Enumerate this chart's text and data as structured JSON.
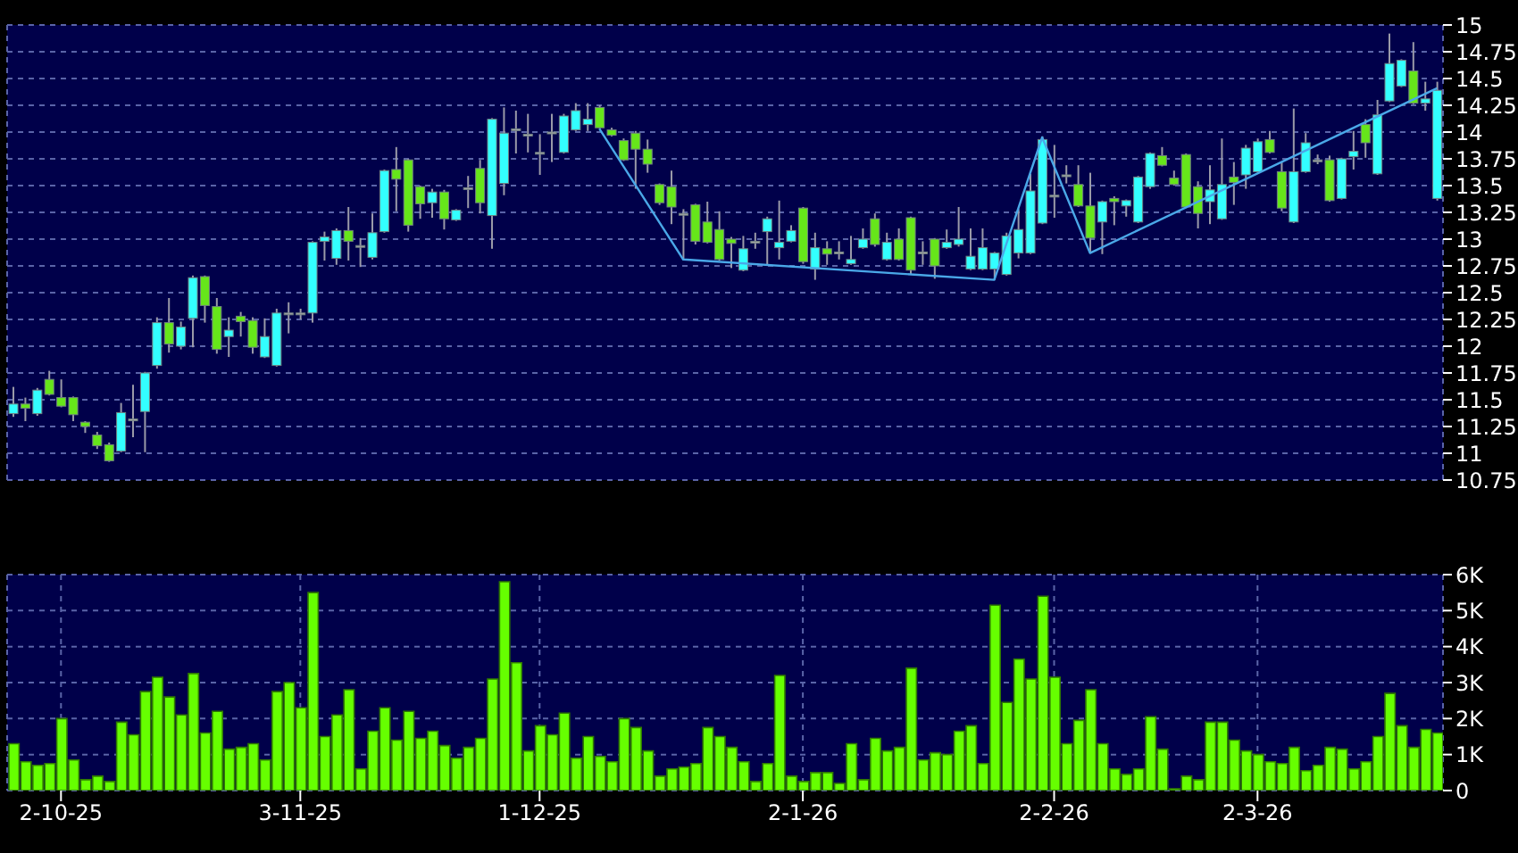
{
  "chart_data": [
    {
      "type": "candlestick",
      "tick_labels": "y",
      "grid": true,
      "ylim": [
        10.75,
        15
      ],
      "yticks": [
        10.75,
        11,
        11.25,
        11.5,
        11.75,
        12,
        12.25,
        12.5,
        12.75,
        13,
        13.25,
        13.5,
        13.75,
        14,
        14.25,
        14.5,
        14.75,
        15
      ],
      "categories": [
        null,
        null,
        null,
        null,
        null,
        null,
        null,
        null,
        null,
        null,
        null,
        null,
        null,
        null,
        null,
        null,
        null,
        null,
        null,
        null,
        null,
        null,
        null,
        null,
        null,
        null,
        null,
        null,
        null,
        null,
        null,
        null,
        null,
        null,
        null,
        null,
        null,
        null,
        null,
        null,
        null,
        null,
        null,
        null,
        null,
        null,
        null,
        null,
        null,
        null,
        null,
        null,
        null,
        null,
        null,
        null,
        null,
        null,
        null,
        null,
        null,
        null,
        null,
        null,
        null,
        null,
        null,
        null,
        null,
        null,
        null,
        null,
        null,
        null,
        null,
        null,
        null,
        null,
        null,
        null,
        null,
        null,
        null,
        null,
        null,
        null,
        null,
        null,
        null,
        null,
        null,
        null,
        null,
        null,
        null,
        null,
        null,
        null,
        null,
        null,
        null,
        null,
        null,
        null,
        null,
        null,
        null,
        null,
        null,
        null,
        null,
        null,
        null,
        null,
        null,
        null,
        null,
        null,
        null,
        null
      ],
      "ohlc": [
        [
          11.37,
          11.62,
          11.34,
          11.46
        ],
        [
          11.46,
          11.52,
          11.3,
          11.42
        ],
        [
          11.37,
          11.61,
          11.35,
          11.59
        ],
        [
          11.69,
          11.77,
          11.54,
          11.55
        ],
        [
          11.52,
          11.69,
          11.43,
          11.44
        ],
        [
          11.52,
          11.53,
          11.3,
          11.36
        ],
        [
          11.29,
          11.3,
          11.19,
          11.25
        ],
        [
          11.17,
          11.2,
          11.04,
          11.07
        ],
        [
          11.08,
          11.1,
          10.92,
          10.93
        ],
        [
          11.02,
          11.47,
          11.01,
          11.38
        ],
        [
          11.32,
          11.64,
          11.15,
          11.32
        ],
        [
          11.39,
          11.76,
          11.01,
          11.75
        ],
        [
          11.82,
          12.27,
          11.79,
          12.22
        ],
        [
          12.22,
          12.45,
          11.94,
          12.02
        ],
        [
          12.0,
          12.23,
          11.97,
          12.18
        ],
        [
          12.26,
          12.66,
          11.99,
          12.64
        ],
        [
          12.65,
          12.66,
          12.22,
          12.38
        ],
        [
          12.37,
          12.45,
          11.93,
          11.97
        ],
        [
          12.09,
          12.27,
          11.9,
          12.15
        ],
        [
          12.28,
          12.32,
          12.09,
          12.23
        ],
        [
          12.24,
          12.27,
          11.93,
          11.99
        ],
        [
          11.9,
          12.26,
          11.89,
          12.09
        ],
        [
          11.82,
          12.35,
          11.81,
          12.31
        ],
        [
          12.31,
          12.41,
          12.12,
          12.31
        ],
        [
          12.31,
          12.35,
          12.25,
          12.31
        ],
        [
          12.31,
          12.98,
          12.22,
          12.97
        ],
        [
          12.98,
          13.07,
          12.8,
          13.02
        ],
        [
          12.82,
          13.1,
          12.76,
          13.08
        ],
        [
          13.08,
          13.3,
          12.8,
          12.98
        ],
        [
          12.94,
          13.01,
          12.74,
          12.94
        ],
        [
          12.83,
          13.24,
          12.81,
          13.06
        ],
        [
          13.07,
          13.65,
          13.06,
          13.64
        ],
        [
          13.65,
          13.86,
          13.26,
          13.56
        ],
        [
          13.74,
          13.75,
          13.07,
          13.13
        ],
        [
          13.49,
          13.5,
          13.19,
          13.33
        ],
        [
          13.34,
          13.47,
          13.2,
          13.44
        ],
        [
          13.44,
          13.46,
          13.09,
          13.19
        ],
        [
          13.18,
          13.28,
          13.17,
          13.27
        ],
        [
          13.48,
          13.59,
          13.29,
          13.48
        ],
        [
          13.66,
          13.74,
          13.24,
          13.34
        ],
        [
          13.22,
          14.13,
          12.91,
          14.12
        ],
        [
          13.52,
          14.23,
          13.41,
          13.99
        ],
        [
          14.03,
          14.2,
          13.8,
          14.03
        ],
        [
          13.98,
          14.17,
          13.81,
          13.98
        ],
        [
          13.81,
          13.98,
          13.6,
          13.81
        ],
        [
          14.0,
          14.17,
          13.72,
          14.0
        ],
        [
          13.81,
          14.17,
          13.8,
          14.15
        ],
        [
          14.02,
          14.27,
          14.01,
          14.2
        ],
        [
          14.07,
          14.27,
          14.01,
          14.12
        ],
        [
          14.23,
          14.25,
          14.03,
          14.04
        ],
        [
          14.02,
          14.04,
          13.96,
          13.97
        ],
        [
          13.92,
          13.94,
          13.73,
          13.74
        ],
        [
          13.99,
          14.01,
          13.47,
          13.84
        ],
        [
          13.84,
          13.93,
          13.62,
          13.7
        ],
        [
          13.51,
          13.52,
          13.32,
          13.34
        ],
        [
          13.49,
          13.64,
          13.14,
          13.3
        ],
        [
          13.24,
          13.28,
          12.81,
          13.24
        ],
        [
          13.32,
          13.33,
          12.95,
          12.98
        ],
        [
          13.16,
          13.35,
          12.96,
          12.97
        ],
        [
          13.09,
          13.26,
          12.8,
          12.81
        ],
        [
          13.0,
          13.02,
          12.73,
          12.96
        ],
        [
          12.71,
          13.03,
          12.7,
          12.91
        ],
        [
          12.98,
          13.06,
          12.91,
          12.98
        ],
        [
          13.07,
          13.21,
          12.76,
          13.19
        ],
        [
          12.92,
          13.36,
          12.81,
          12.97
        ],
        [
          12.98,
          13.13,
          12.97,
          13.08
        ],
        [
          13.29,
          13.3,
          12.77,
          12.79
        ],
        [
          12.72,
          13.06,
          12.62,
          12.92
        ],
        [
          12.91,
          12.98,
          12.76,
          12.86
        ],
        [
          12.88,
          12.98,
          12.81,
          12.88
        ],
        [
          12.77,
          13.03,
          12.76,
          12.81
        ],
        [
          12.92,
          13.1,
          12.91,
          13.0
        ],
        [
          13.19,
          13.24,
          12.93,
          12.95
        ],
        [
          12.81,
          13.06,
          12.8,
          12.97
        ],
        [
          13.0,
          13.1,
          12.8,
          12.81
        ],
        [
          13.2,
          13.21,
          12.67,
          12.71
        ],
        [
          12.88,
          12.98,
          12.76,
          12.88
        ],
        [
          13.0,
          13.01,
          12.63,
          12.75
        ],
        [
          12.92,
          13.09,
          12.91,
          12.97
        ],
        [
          12.95,
          13.3,
          12.93,
          13.0
        ],
        [
          12.72,
          13.1,
          12.71,
          12.84
        ],
        [
          12.72,
          13.1,
          12.71,
          12.92
        ],
        [
          12.72,
          12.88,
          12.62,
          12.87
        ],
        [
          12.67,
          13.06,
          12.66,
          13.03
        ],
        [
          12.87,
          13.28,
          12.82,
          13.09
        ],
        [
          12.87,
          13.61,
          12.86,
          13.45
        ],
        [
          13.15,
          13.96,
          13.14,
          13.93
        ],
        [
          13.41,
          13.88,
          13.2,
          13.41
        ],
        [
          13.6,
          13.69,
          13.52,
          13.6
        ],
        [
          13.51,
          13.69,
          13.3,
          13.31
        ],
        [
          13.31,
          13.62,
          12.87,
          13.01
        ],
        [
          13.16,
          13.36,
          12.86,
          13.35
        ],
        [
          13.38,
          13.4,
          13.13,
          13.35
        ],
        [
          13.31,
          13.37,
          13.21,
          13.36
        ],
        [
          13.16,
          13.59,
          13.15,
          13.58
        ],
        [
          13.49,
          13.81,
          13.47,
          13.8
        ],
        [
          13.78,
          13.86,
          13.68,
          13.69
        ],
        [
          13.57,
          13.64,
          13.5,
          13.51
        ],
        [
          13.79,
          13.8,
          13.29,
          13.3
        ],
        [
          13.49,
          13.54,
          13.1,
          13.24
        ],
        [
          13.35,
          13.69,
          13.14,
          13.46
        ],
        [
          13.19,
          13.94,
          13.18,
          13.51
        ],
        [
          13.58,
          13.72,
          13.32,
          13.53
        ],
        [
          13.6,
          13.88,
          13.47,
          13.85
        ],
        [
          13.63,
          13.94,
          13.62,
          13.91
        ],
        [
          13.93,
          14.01,
          13.8,
          13.81
        ],
        [
          13.63,
          13.72,
          13.26,
          13.29
        ],
        [
          13.16,
          14.22,
          13.15,
          13.63
        ],
        [
          13.63,
          13.99,
          13.62,
          13.9
        ],
        [
          13.74,
          13.79,
          13.7,
          13.74
        ],
        [
          13.74,
          13.78,
          13.35,
          13.36
        ],
        [
          13.38,
          13.76,
          13.37,
          13.75
        ],
        [
          13.77,
          14.01,
          13.65,
          13.82
        ],
        [
          14.07,
          14.12,
          13.76,
          13.9
        ],
        [
          13.61,
          14.3,
          13.6,
          14.16
        ],
        [
          14.29,
          14.92,
          14.28,
          14.64
        ],
        [
          14.43,
          14.68,
          14.42,
          14.67
        ],
        [
          14.57,
          14.84,
          14.26,
          14.27
        ],
        [
          14.27,
          14.47,
          14.2,
          14.31
        ],
        [
          13.38,
          14.47,
          13.36,
          14.39
        ]
      ],
      "colors": [
        "#33ffff",
        "#66e61a",
        "#33ffff",
        "#66e61a",
        "#66e61a",
        "#66e61a",
        "#66e61a",
        "#66e61a",
        "#66e61a",
        "#33ffff",
        "#aaaaaa",
        "#33ffff",
        "#33ffff",
        "#66e61a",
        "#33ffff",
        "#33ffff",
        "#66e61a",
        "#66e61a",
        "#33ffff",
        "#66e61a",
        "#66e61a",
        "#33ffff",
        "#33ffff",
        "#aaaaaa",
        "#aaaaaa",
        "#33ffff",
        "#33ffff",
        "#33ffff",
        "#66e61a",
        "#aaaaaa",
        "#33ffff",
        "#33ffff",
        "#66e61a",
        "#66e61a",
        "#66e61a",
        "#33ffff",
        "#66e61a",
        "#33ffff",
        "#aaaaaa",
        "#66e61a",
        "#33ffff",
        "#33ffff",
        "#aaaaaa",
        "#aaaaaa",
        "#aaaaaa",
        "#aaaaaa",
        "#33ffff",
        "#33ffff",
        "#33ffff",
        "#66e61a",
        "#66e61a",
        "#66e61a",
        "#66e61a",
        "#66e61a",
        "#66e61a",
        "#66e61a",
        "#aaaaaa",
        "#66e61a",
        "#66e61a",
        "#66e61a",
        "#66e61a",
        "#33ffff",
        "#aaaaaa",
        "#33ffff",
        "#33ffff",
        "#33ffff",
        "#66e61a",
        "#33ffff",
        "#66e61a",
        "#aaaaaa",
        "#33ffff",
        "#33ffff",
        "#66e61a",
        "#33ffff",
        "#66e61a",
        "#66e61a",
        "#aaaaaa",
        "#66e61a",
        "#33ffff",
        "#33ffff",
        "#33ffff",
        "#33ffff",
        "#33ffff",
        "#33ffff",
        "#33ffff",
        "#33ffff",
        "#33ffff",
        "#aaaaaa",
        "#aaaaaa",
        "#66e61a",
        "#66e61a",
        "#33ffff",
        "#66e61a",
        "#33ffff",
        "#33ffff",
        "#33ffff",
        "#66e61a",
        "#66e61a",
        "#66e61a",
        "#66e61a",
        "#33ffff",
        "#33ffff",
        "#66e61a",
        "#33ffff",
        "#33ffff",
        "#66e61a",
        "#66e61a",
        "#33ffff",
        "#33ffff",
        "#aaaaaa",
        "#66e61a",
        "#33ffff",
        "#33ffff",
        "#66e61a",
        "#33ffff",
        "#33ffff",
        "#33ffff",
        "#66e61a",
        "#33ffff",
        "#33ffff"
      ],
      "series": [
        {
          "type": "line",
          "color": "#4aa8e8",
          "values": [
            null,
            null,
            null,
            null,
            null,
            null,
            null,
            null,
            null,
            null,
            null,
            null,
            null,
            null,
            null,
            null,
            null,
            null,
            null,
            null,
            null,
            null,
            null,
            null,
            null,
            null,
            null,
            null,
            null,
            null,
            null,
            null,
            null,
            null,
            null,
            null,
            null,
            null,
            null,
            null,
            null,
            null,
            null,
            null,
            null,
            null,
            null,
            null,
            null,
            14.03,
            null,
            null,
            null,
            null,
            null,
            null,
            12.81,
            null,
            null,
            null,
            null,
            null,
            null,
            null,
            null,
            null,
            null,
            null,
            null,
            null,
            null,
            null,
            null,
            null,
            null,
            null,
            null,
            null,
            null,
            null,
            null,
            null,
            12.62,
            null,
            null,
            null,
            13.95,
            null,
            null,
            null,
            12.87,
            null,
            null,
            null,
            null,
            null,
            null,
            null,
            null,
            null,
            null,
            null,
            null,
            null,
            null,
            null,
            null,
            null,
            null,
            null,
            null,
            null,
            null,
            null,
            null,
            null,
            null,
            null,
            null,
            14.41
          ]
        }
      ]
    },
    {
      "type": "bar",
      "grid": true,
      "color": "#66ff00",
      "ylim": [
        0,
        6000
      ],
      "yticks": [
        0,
        {
          "value": 1000,
          "label": "1K"
        },
        {
          "value": 2000,
          "label": "2K"
        },
        {
          "value": 3000,
          "label": "3K"
        },
        {
          "value": 4000,
          "label": "4K"
        },
        {
          "value": 5000,
          "label": "5K"
        },
        {
          "value": 6000,
          "label": "6K"
        }
      ],
      "categories": [
        null,
        null,
        null,
        null,
        "2-10-25",
        null,
        null,
        null,
        null,
        null,
        null,
        null,
        null,
        null,
        null,
        null,
        null,
        null,
        null,
        null,
        null,
        null,
        null,
        null,
        "3-11-25",
        null,
        null,
        null,
        null,
        null,
        null,
        null,
        null,
        null,
        null,
        null,
        null,
        null,
        null,
        null,
        null,
        null,
        null,
        null,
        "1-12-25",
        null,
        null,
        null,
        null,
        null,
        null,
        null,
        null,
        null,
        null,
        null,
        null,
        null,
        null,
        null,
        null,
        null,
        null,
        null,
        null,
        null,
        "2-1-26",
        null,
        null,
        null,
        null,
        null,
        null,
        null,
        null,
        null,
        null,
        null,
        null,
        null,
        null,
        null,
        null,
        null,
        null,
        null,
        null,
        "2-2-26",
        null,
        null,
        null,
        null,
        null,
        null,
        null,
        null,
        null,
        null,
        null,
        null,
        null,
        null,
        null,
        null,
        "2-3-26",
        null,
        null,
        null,
        null,
        null,
        null,
        null,
        null,
        null,
        null,
        null,
        null,
        null,
        null,
        null
      ],
      "values": [
        1300,
        800,
        700,
        750,
        2000,
        850,
        300,
        400,
        250,
        1900,
        1550,
        2750,
        3150,
        2600,
        2100,
        3250,
        1600,
        2200,
        1150,
        1200,
        1300,
        850,
        2750,
        3000,
        2300,
        5500,
        1500,
        2100,
        2800,
        600,
        1650,
        2300,
        1400,
        2200,
        1450,
        1650,
        1250,
        900,
        1200,
        1450,
        3100,
        5800,
        3550,
        1100,
        1800,
        1550,
        2150,
        900,
        1500,
        950,
        800,
        2000,
        1750,
        1100,
        400,
        600,
        650,
        750,
        1750,
        1500,
        1200,
        800,
        250,
        750,
        3200,
        400,
        250,
        500,
        500,
        200,
        1300,
        300,
        1450,
        1100,
        1200,
        3400,
        850,
        1050,
        1000,
        1650,
        1800,
        750,
        5150,
        2450,
        3650,
        3100,
        5400,
        3150,
        1300,
        1950,
        2800,
        1300,
        600,
        450,
        600,
        2050,
        1150,
        50,
        400,
        300,
        1900,
        1900,
        1400,
        1100,
        1000,
        800,
        750,
        1200,
        550,
        700,
        1200,
        1150,
        600,
        800,
        1500,
        2700,
        1800,
        1200,
        1700,
        1600
      ]
    }
  ]
}
